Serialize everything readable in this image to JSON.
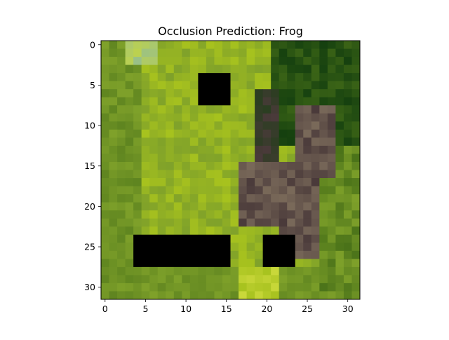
{
  "chart_data": {
    "type": "heatmap",
    "title": "Occlusion Prediction: Frog",
    "xlabel": "",
    "ylabel": "",
    "x_range": [
      -0.5,
      31.5
    ],
    "y_range": [
      31.5,
      -0.5
    ],
    "x_ticks": [
      0,
      5,
      10,
      15,
      20,
      25,
      30
    ],
    "y_ticks": [
      0,
      5,
      10,
      15,
      20,
      25,
      30
    ],
    "grid": false,
    "image_size": [
      32,
      32
    ],
    "occlusion_boxes": [
      {
        "x0": 12,
        "x1": 15,
        "y0": 4,
        "y1": 7
      },
      {
        "x0": 4,
        "x1": 15,
        "y0": 24,
        "y1": 27
      },
      {
        "x0": 20,
        "x1": 23,
        "y0": 24,
        "y1": 27
      }
    ],
    "occlusion_color": "#000000",
    "palette": {
      "grass_bright": "#a7c21e",
      "grass_mid": "#7fa12a",
      "grass_dark": "#4a7219",
      "foliage_deep": "#15400f",
      "frog_brown": "#7a6a5a",
      "frog_dark": "#4a3a3a",
      "highlight": "#c9d83a"
    }
  }
}
